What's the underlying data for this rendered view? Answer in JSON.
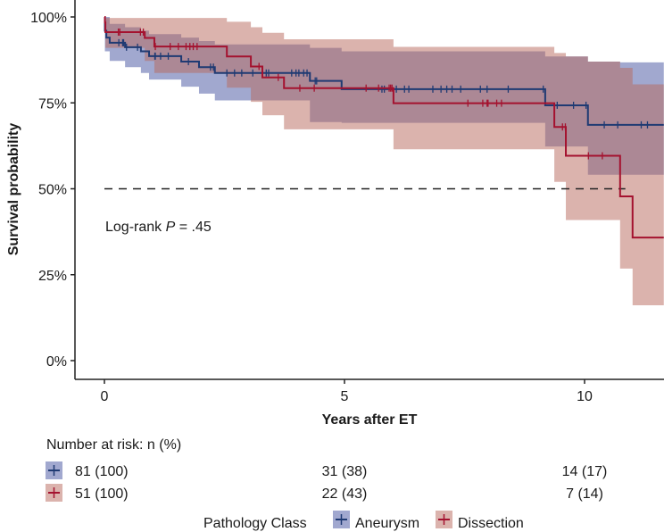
{
  "chart_data": {
    "type": "line",
    "subtype": "kaplan-meier",
    "title": "",
    "xlabel": "Years after ET",
    "ylabel": "Survival probability",
    "xlim": [
      -0.6,
      11.65
    ],
    "ylim": [
      0,
      100
    ],
    "x_ticks": [
      0,
      5,
      10
    ],
    "x_tick_labels": [
      "0",
      "5",
      "10"
    ],
    "y_ticks": [
      0,
      25,
      50,
      75,
      100
    ],
    "y_tick_labels": [
      "0%",
      "25%",
      "50%",
      "75%",
      "100%"
    ],
    "reference_line": {
      "y": 50,
      "style": "dashed"
    },
    "annotation": {
      "prefix": "Log-rank ",
      "italic": "P",
      "suffix": " = .45"
    },
    "legend": {
      "title": "Pathology Class",
      "placement": "bottom"
    },
    "series": [
      {
        "name": "Aneurysm",
        "line_color": "#1f3a73",
        "fill_color": "#4352a0",
        "steps": [
          [
            0,
            100
          ],
          [
            0.01,
            96
          ],
          [
            0.04,
            94
          ],
          [
            0.11,
            92.5
          ],
          [
            0.43,
            91.2
          ],
          [
            0.76,
            90
          ],
          [
            0.93,
            88.6
          ],
          [
            1.6,
            87
          ],
          [
            1.97,
            85.4
          ],
          [
            2.3,
            83.7
          ],
          [
            4.28,
            81.4
          ],
          [
            4.94,
            79
          ],
          [
            9.18,
            74.3
          ],
          [
            10.07,
            68.6
          ]
        ],
        "ci": [
          [
            0,
            100,
            100
          ],
          [
            0.01,
            100,
            90
          ],
          [
            0.11,
            98,
            87.2
          ],
          [
            0.43,
            97,
            85.4
          ],
          [
            0.76,
            96,
            83.7
          ],
          [
            0.93,
            95,
            81.8
          ],
          [
            1.6,
            94,
            79.7
          ],
          [
            1.97,
            93,
            77.7
          ],
          [
            2.3,
            92,
            75.7
          ],
          [
            4.28,
            91,
            69.4
          ],
          [
            4.94,
            90,
            69.2
          ],
          [
            9.18,
            88.5,
            62.3
          ],
          [
            10.07,
            87,
            54.1
          ],
          [
            10.74,
            86.8,
            54.1
          ]
        ],
        "censored": [
          0.3,
          0.38,
          0.4,
          0.46,
          0.69,
          1.05,
          1.06,
          1.17,
          1.33,
          1.75,
          2.21,
          2.27,
          2.55,
          2.71,
          2.86,
          3.09,
          3.37,
          3.42,
          3.9,
          3.99,
          4.05,
          4.15,
          4.22,
          4.39,
          4.42,
          5.78,
          5.83,
          6.08,
          6.25,
          6.34,
          6.84,
          7.01,
          7.13,
          7.24,
          7.42,
          7.83,
          7.97,
          8.41,
          9.14,
          9.43,
          9.77,
          10.03,
          10.41,
          10.69,
          11.18,
          11.31
        ]
      },
      {
        "name": "Dissection",
        "line_color": "#a4122f",
        "fill_color": "#b7675c",
        "steps": [
          [
            0,
            100
          ],
          [
            0.01,
            98.4
          ],
          [
            0.02,
            95.6
          ],
          [
            0.84,
            93.9
          ],
          [
            1.04,
            91.4
          ],
          [
            2.55,
            88.5
          ],
          [
            3.05,
            85.6
          ],
          [
            3.29,
            82.4
          ],
          [
            3.74,
            79.3
          ],
          [
            6.02,
            74.9
          ],
          [
            9.37,
            68
          ],
          [
            9.61,
            59.6
          ],
          [
            10.74,
            47.8
          ],
          [
            11.0,
            35.8
          ]
        ],
        "ci": [
          [
            0,
            100,
            100
          ],
          [
            0.02,
            99.7,
            91
          ],
          [
            0.84,
            99.7,
            87.2
          ],
          [
            1.04,
            99.7,
            83.7
          ],
          [
            2.55,
            98.6,
            79.4
          ],
          [
            3.05,
            97,
            75.3
          ],
          [
            3.29,
            95.4,
            71.4
          ],
          [
            3.74,
            93.5,
            67.3
          ],
          [
            6.02,
            91.3,
            61.5
          ],
          [
            9.37,
            89.5,
            52
          ],
          [
            9.61,
            88.5,
            40.9
          ],
          [
            10.07,
            87,
            40.9
          ],
          [
            10.74,
            85.2,
            26.8
          ],
          [
            11.0,
            80.4,
            16.1
          ]
        ],
        "censored": [
          0.29,
          0.32,
          0.75,
          0.81,
          1.06,
          1.37,
          1.54,
          1.7,
          1.78,
          1.85,
          1.93,
          3.22,
          3.62,
          4.07,
          4.37,
          5.45,
          5.71,
          5.93,
          5.96,
          5.99,
          7.57,
          7.88,
          7.97,
          7.99,
          8.17,
          8.27,
          9.54,
          9.6,
          10.08,
          10.37
        ]
      }
    ],
    "risk_table": {
      "title": "Number at risk: n (%)",
      "times": [
        0,
        5,
        10
      ],
      "rows": [
        {
          "name": "Aneurysm",
          "values": [
            "81 (100)",
            "31 (38)",
            "14 (17)"
          ]
        },
        {
          "name": "Dissection",
          "values": [
            "51 (100)",
            "22 (43)",
            "7 (14)"
          ]
        }
      ]
    }
  }
}
